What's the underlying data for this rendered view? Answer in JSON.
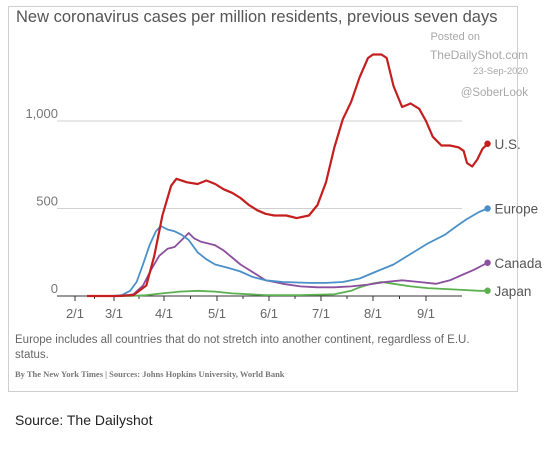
{
  "chart_data": {
    "type": "line",
    "title": "New coronavirus cases per million residents, previous seven days",
    "x_ticks": [
      "2/1",
      "3/1",
      "4/1",
      "5/1",
      "6/1",
      "7/1",
      "8/1",
      "9/1"
    ],
    "y_ticks": [
      "0",
      "500",
      "1,000"
    ],
    "ylim": [
      0,
      1400
    ],
    "xlabel": "",
    "ylabel": "",
    "grid": true,
    "x_unit": "days since 2020-01-01",
    "series": [
      {
        "name": "U.S.",
        "color": "#c41e1e",
        "points": [
          [
            40,
            0
          ],
          [
            62,
            0
          ],
          [
            72,
            5
          ],
          [
            80,
            60
          ],
          [
            85,
            230
          ],
          [
            90,
            460
          ],
          [
            95,
            630
          ],
          [
            98,
            670
          ],
          [
            104,
            650
          ],
          [
            110,
            640
          ],
          [
            115,
            660
          ],
          [
            120,
            640
          ],
          [
            125,
            610
          ],
          [
            130,
            590
          ],
          [
            135,
            560
          ],
          [
            140,
            520
          ],
          [
            145,
            490
          ],
          [
            150,
            470
          ],
          [
            155,
            460
          ],
          [
            162,
            460
          ],
          [
            168,
            445
          ],
          [
            175,
            460
          ],
          [
            180,
            520
          ],
          [
            185,
            650
          ],
          [
            190,
            850
          ],
          [
            195,
            1010
          ],
          [
            200,
            1110
          ],
          [
            205,
            1250
          ],
          [
            210,
            1360
          ],
          [
            213,
            1380
          ],
          [
            218,
            1380
          ],
          [
            221,
            1360
          ],
          [
            225,
            1200
          ],
          [
            230,
            1080
          ],
          [
            235,
            1100
          ],
          [
            240,
            1070
          ],
          [
            244,
            1000
          ],
          [
            248,
            910
          ],
          [
            253,
            860
          ],
          [
            258,
            860
          ],
          [
            263,
            850
          ],
          [
            266,
            830
          ],
          [
            268,
            760
          ],
          [
            271,
            740
          ],
          [
            274,
            780
          ],
          [
            277,
            840
          ],
          [
            280,
            870
          ]
        ]
      },
      {
        "name": "Europe",
        "color": "#4a90c8",
        "points": [
          [
            40,
            0
          ],
          [
            58,
            0
          ],
          [
            65,
            5
          ],
          [
            70,
            30
          ],
          [
            74,
            80
          ],
          [
            78,
            180
          ],
          [
            82,
            290
          ],
          [
            86,
            370
          ],
          [
            89,
            400
          ],
          [
            93,
            380
          ],
          [
            97,
            370
          ],
          [
            101,
            350
          ],
          [
            105,
            320
          ],
          [
            110,
            250
          ],
          [
            115,
            210
          ],
          [
            120,
            180
          ],
          [
            128,
            160
          ],
          [
            135,
            140
          ],
          [
            142,
            110
          ],
          [
            150,
            90
          ],
          [
            160,
            80
          ],
          [
            175,
            75
          ],
          [
            185,
            75
          ],
          [
            195,
            80
          ],
          [
            205,
            100
          ],
          [
            215,
            140
          ],
          [
            225,
            180
          ],
          [
            235,
            240
          ],
          [
            245,
            300
          ],
          [
            255,
            350
          ],
          [
            262,
            400
          ],
          [
            268,
            440
          ],
          [
            275,
            480
          ],
          [
            280,
            500
          ]
        ]
      },
      {
        "name": "Canada",
        "color": "#8b4f9e",
        "points": [
          [
            40,
            0
          ],
          [
            65,
            0
          ],
          [
            72,
            10
          ],
          [
            78,
            60
          ],
          [
            83,
            150
          ],
          [
            88,
            230
          ],
          [
            93,
            270
          ],
          [
            97,
            280
          ],
          [
            101,
            320
          ],
          [
            105,
            360
          ],
          [
            108,
            330
          ],
          [
            112,
            310
          ],
          [
            116,
            300
          ],
          [
            120,
            290
          ],
          [
            125,
            260
          ],
          [
            130,
            220
          ],
          [
            135,
            180
          ],
          [
            140,
            150
          ],
          [
            145,
            120
          ],
          [
            150,
            90
          ],
          [
            160,
            70
          ],
          [
            170,
            55
          ],
          [
            180,
            50
          ],
          [
            190,
            50
          ],
          [
            200,
            55
          ],
          [
            210,
            65
          ],
          [
            220,
            80
          ],
          [
            230,
            90
          ],
          [
            240,
            80
          ],
          [
            250,
            70
          ],
          [
            258,
            90
          ],
          [
            265,
            120
          ],
          [
            272,
            150
          ],
          [
            278,
            180
          ],
          [
            280,
            190
          ]
        ]
      },
      {
        "name": "Japan",
        "color": "#5bb04f",
        "points": [
          [
            40,
            0
          ],
          [
            70,
            0
          ],
          [
            80,
            5
          ],
          [
            90,
            15
          ],
          [
            100,
            25
          ],
          [
            110,
            30
          ],
          [
            120,
            25
          ],
          [
            130,
            15
          ],
          [
            150,
            5
          ],
          [
            170,
            5
          ],
          [
            190,
            10
          ],
          [
            200,
            30
          ],
          [
            205,
            50
          ],
          [
            212,
            70
          ],
          [
            218,
            80
          ],
          [
            225,
            70
          ],
          [
            235,
            55
          ],
          [
            245,
            45
          ],
          [
            255,
            40
          ],
          [
            265,
            35
          ],
          [
            275,
            30
          ],
          [
            280,
            30
          ]
        ]
      }
    ]
  },
  "credit": {
    "posted_on": "Posted on",
    "site": "TheDailyShot.com",
    "date": "23-Sep-2020",
    "handle": "@SoberLook"
  },
  "footnote": "Europe includes all countries that do not stretch into another continent, regardless of E.U. status.",
  "byline": "By The New York Times | Sources: Johns Hopkins University, World Bank",
  "source_caption": "Source: The Dailyshot"
}
